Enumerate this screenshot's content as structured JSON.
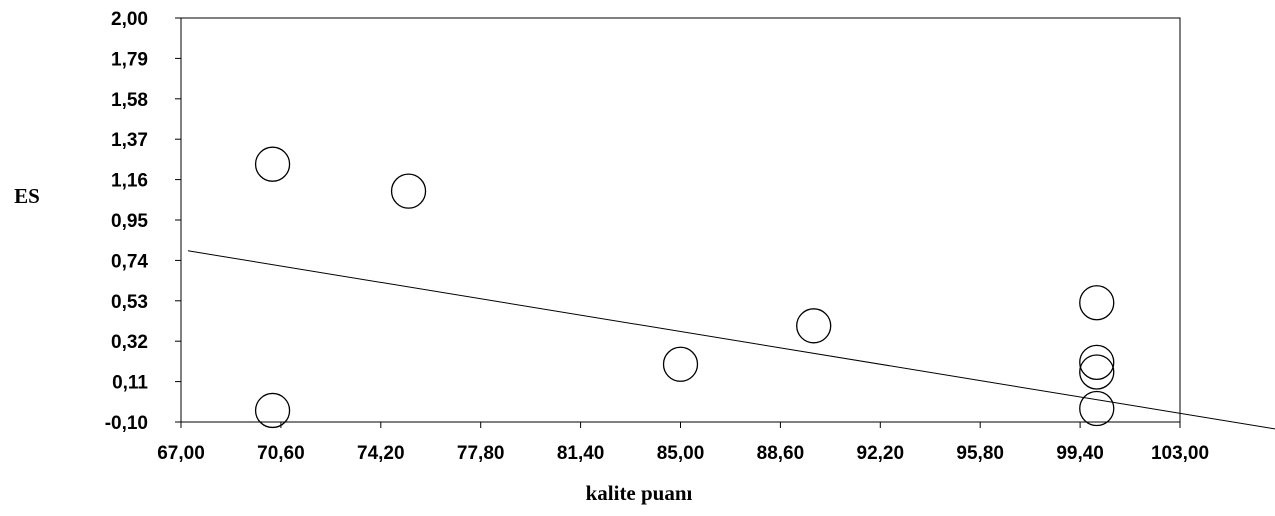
{
  "chart_data": {
    "type": "scatter",
    "title": "",
    "xlabel": "kalite puanı",
    "ylabel": "ES",
    "xlim": [
      67.0,
      106.6
    ],
    "ylim": [
      -0.1,
      2.0
    ],
    "x_ticks": [
      "67,00",
      "70,60",
      "74,20",
      "77,80",
      "81,40",
      "85,00",
      "88,60",
      "92,20",
      "95,80",
      "99,40",
      "103,00"
    ],
    "x_tick_values": [
      67.0,
      70.6,
      74.2,
      77.8,
      81.4,
      85.0,
      88.6,
      92.2,
      95.8,
      99.4,
      103.0
    ],
    "y_ticks": [
      "2,00",
      "1,79",
      "1,58",
      "1,37",
      "1,16",
      "0,95",
      "0,74",
      "0,53",
      "0,32",
      "0,11",
      "-0,10"
    ],
    "y_tick_values": [
      2.0,
      1.79,
      1.58,
      1.37,
      1.16,
      0.95,
      0.74,
      0.53,
      0.32,
      0.11,
      -0.1
    ],
    "grid": false,
    "legend": "none",
    "points": [
      {
        "x": 70.3,
        "y": 1.24
      },
      {
        "x": 70.3,
        "y": -0.04
      },
      {
        "x": 75.2,
        "y": 1.1
      },
      {
        "x": 85.0,
        "y": 0.2
      },
      {
        "x": 89.8,
        "y": 0.4
      },
      {
        "x": 100.0,
        "y": 0.52
      },
      {
        "x": 100.0,
        "y": 0.21
      },
      {
        "x": 100.0,
        "y": 0.16
      },
      {
        "x": 100.0,
        "y": -0.03
      }
    ],
    "trendline": {
      "x": [
        67.25,
        106.6
      ],
      "y": [
        0.79,
        -0.14
      ]
    }
  }
}
